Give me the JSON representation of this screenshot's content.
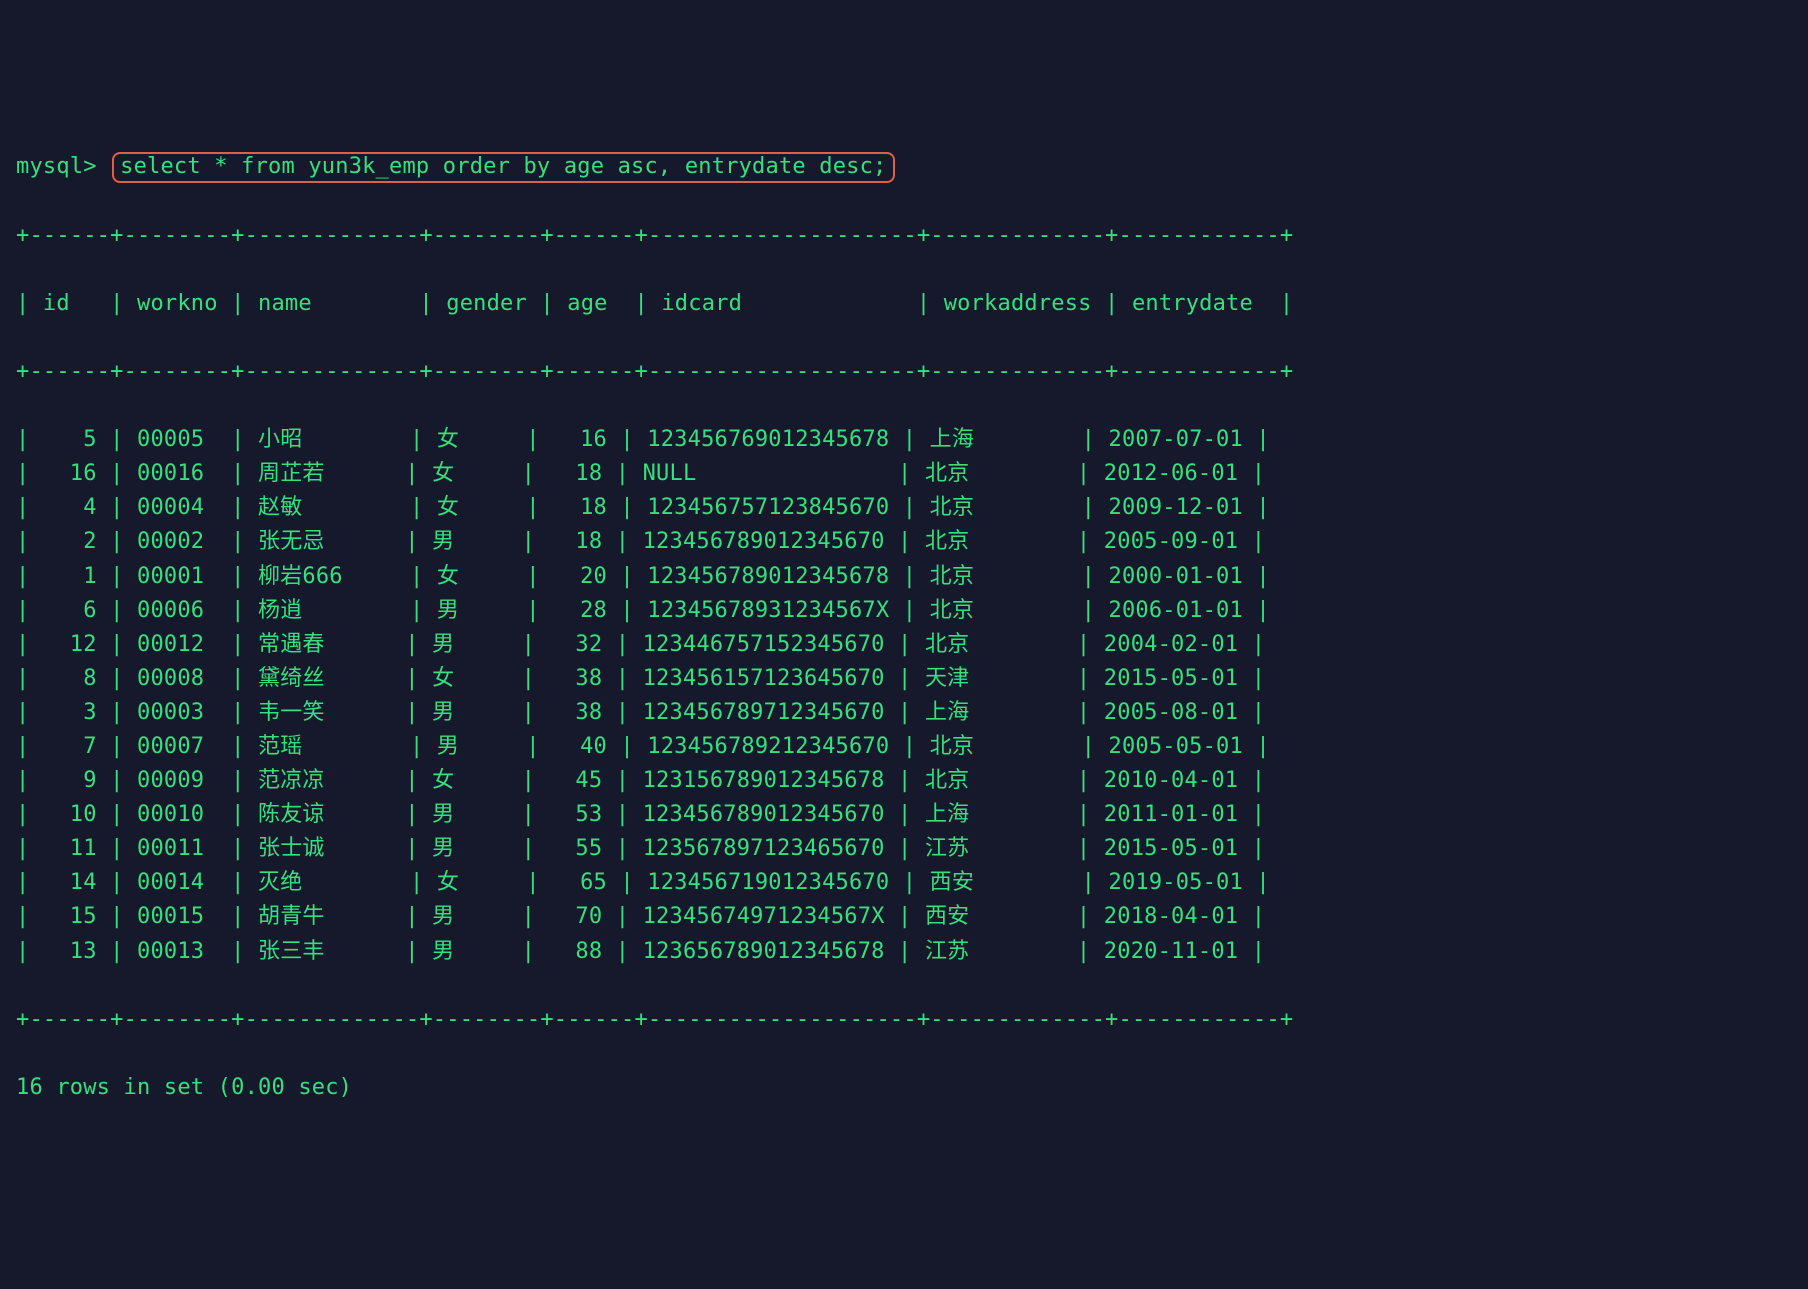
{
  "colors": {
    "background": "#16192c",
    "text": "#36e07d",
    "highlight_border": "#e0613e"
  },
  "prompt": "mysql>",
  "query": "select * from yun3k_emp order by age asc, entrydate desc;",
  "footer": "16 rows in set (0.00 sec)",
  "table": {
    "columns": [
      {
        "name": "id",
        "width": 4,
        "align": "right"
      },
      {
        "name": "workno",
        "width": 6,
        "align": "left"
      },
      {
        "name": "name",
        "width": 11,
        "align": "left"
      },
      {
        "name": "gender",
        "width": 6,
        "align": "left"
      },
      {
        "name": "age",
        "width": 4,
        "align": "right"
      },
      {
        "name": "idcard",
        "width": 18,
        "align": "left"
      },
      {
        "name": "workaddress",
        "width": 11,
        "align": "left"
      },
      {
        "name": "entrydate",
        "width": 10,
        "align": "left"
      }
    ],
    "rows": [
      [
        "5",
        "00005",
        "小昭",
        "女",
        "16",
        "123456769012345678",
        "上海",
        "2007-07-01"
      ],
      [
        "16",
        "00016",
        "周芷若",
        "女",
        "18",
        "NULL",
        "北京",
        "2012-06-01"
      ],
      [
        "4",
        "00004",
        "赵敏",
        "女",
        "18",
        "123456757123845670",
        "北京",
        "2009-12-01"
      ],
      [
        "2",
        "00002",
        "张无忌",
        "男",
        "18",
        "123456789012345670",
        "北京",
        "2005-09-01"
      ],
      [
        "1",
        "00001",
        "柳岩666",
        "女",
        "20",
        "123456789012345678",
        "北京",
        "2000-01-01"
      ],
      [
        "6",
        "00006",
        "杨逍",
        "男",
        "28",
        "12345678931234567X",
        "北京",
        "2006-01-01"
      ],
      [
        "12",
        "00012",
        "常遇春",
        "男",
        "32",
        "123446757152345670",
        "北京",
        "2004-02-01"
      ],
      [
        "8",
        "00008",
        "黛绮丝",
        "女",
        "38",
        "123456157123645670",
        "天津",
        "2015-05-01"
      ],
      [
        "3",
        "00003",
        "韦一笑",
        "男",
        "38",
        "123456789712345670",
        "上海",
        "2005-08-01"
      ],
      [
        "7",
        "00007",
        "范瑶",
        "男",
        "40",
        "123456789212345670",
        "北京",
        "2005-05-01"
      ],
      [
        "9",
        "00009",
        "范凉凉",
        "女",
        "45",
        "123156789012345678",
        "北京",
        "2010-04-01"
      ],
      [
        "10",
        "00010",
        "陈友谅",
        "男",
        "53",
        "123456789012345670",
        "上海",
        "2011-01-01"
      ],
      [
        "11",
        "00011",
        "张士诚",
        "男",
        "55",
        "123567897123465670",
        "江苏",
        "2015-05-01"
      ],
      [
        "14",
        "00014",
        "灭绝",
        "女",
        "65",
        "123456719012345670",
        "西安",
        "2019-05-01"
      ],
      [
        "15",
        "00015",
        "胡青牛",
        "男",
        "70",
        "12345674971234567X",
        "西安",
        "2018-04-01"
      ],
      [
        "13",
        "00013",
        "张三丰",
        "男",
        "88",
        "123656789012345678",
        "江苏",
        "2020-11-01"
      ]
    ]
  }
}
